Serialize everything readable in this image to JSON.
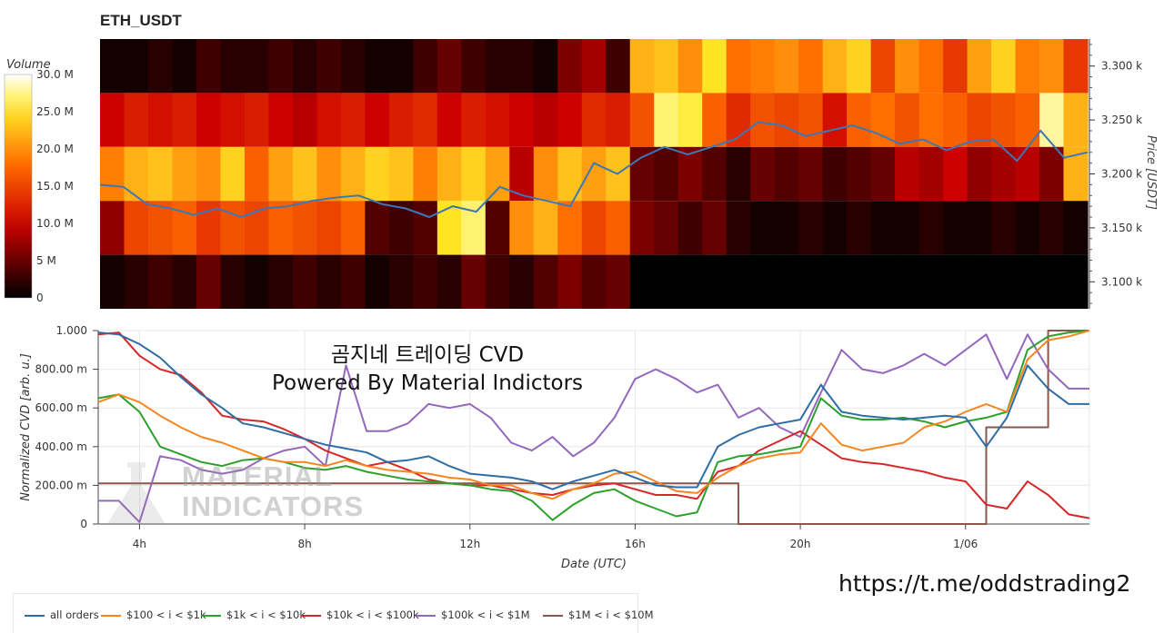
{
  "title": "ETH_USDT",
  "overlay_title": [
    "곰지네 트레이딩 CVD",
    "Powered By Material Indictors"
  ],
  "link": "https://t.me/oddstrading2",
  "watermark": [
    "MATERIAL",
    "INDICATORS"
  ],
  "colors": {
    "all": "#2e6da4",
    "s100": "#f5861f",
    "s1k": "#2ca02c",
    "s10k": "#d62728",
    "s100k": "#9467bd",
    "s1M": "#8c564b",
    "price": "#3b78b5"
  },
  "chart_data": [
    {
      "type": "heatmap",
      "title": "ETH_USDT",
      "colorbar": {
        "label": "Volume",
        "min": 0,
        "max": 30000000,
        "ticks": [
          "30.0 M",
          "25.0 M",
          "20.0 M",
          "15.0 M",
          "10.0 M",
          "5 M",
          "0"
        ]
      },
      "y_axis": {
        "label": "Price [USDT]",
        "range": [
          3075,
          3325
        ],
        "ticks": [
          3100,
          3150,
          3200,
          3250,
          3300
        ],
        "tick_labels": [
          "3.100 k",
          "3.150 k",
          "3.200 k",
          "3.250 k",
          "3.300 k"
        ]
      },
      "price_bands": [
        3075,
        3125,
        3175,
        3225,
        3275,
        3325
      ],
      "volume_profile_M": {
        "band_3300": [
          1,
          1,
          2,
          1,
          3,
          2,
          2,
          3,
          2,
          3,
          2,
          1,
          1,
          3,
          5,
          3,
          2,
          2,
          1,
          6,
          8,
          3,
          22,
          23,
          20,
          25,
          18,
          19,
          20,
          18,
          22,
          24,
          15,
          20,
          18,
          14,
          21,
          24,
          19,
          20,
          14
        ],
        "band_3250": [
          10,
          12,
          11,
          12,
          10,
          11,
          12,
          10,
          9,
          11,
          12,
          10,
          12,
          13,
          10,
          12,
          11,
          10,
          9,
          10,
          13,
          12,
          16,
          27,
          26,
          17,
          13,
          16,
          15,
          16,
          11,
          17,
          18,
          16,
          18,
          17,
          15,
          16,
          17,
          28,
          22
        ],
        "band_3200": [
          19,
          22,
          23,
          21,
          20,
          24,
          17,
          21,
          23,
          20,
          22,
          24,
          23,
          19,
          22,
          24,
          21,
          9,
          20,
          23,
          21,
          23,
          5,
          4,
          6,
          4,
          2,
          5,
          4,
          5,
          3,
          4,
          5,
          9,
          8,
          10,
          7,
          8,
          9,
          6,
          22
        ],
        "band_3150": [
          7,
          15,
          16,
          17,
          14,
          16,
          15,
          17,
          16,
          15,
          17,
          4,
          3,
          4,
          25,
          27,
          4,
          20,
          22,
          18,
          15,
          17,
          6,
          5,
          3,
          5,
          2,
          1,
          1,
          2,
          1,
          2,
          1,
          1,
          2,
          1,
          1,
          2,
          1,
          2,
          1
        ],
        "band_3100": [
          1,
          2,
          3,
          2,
          5,
          2,
          1,
          2,
          3,
          2,
          3,
          1,
          2,
          3,
          2,
          5,
          3,
          2,
          4,
          6,
          4,
          5,
          0,
          0,
          0,
          0,
          0,
          0,
          0,
          0,
          0,
          0,
          0,
          0,
          0,
          0,
          0,
          0,
          0,
          0,
          0
        ]
      },
      "price_line": [
        3190,
        3188,
        3172,
        3168,
        3162,
        3168,
        3160,
        3168,
        3170,
        3175,
        3178,
        3180,
        3172,
        3168,
        3160,
        3170,
        3165,
        3188,
        3180,
        3175,
        3170,
        3210,
        3200,
        3215,
        3225,
        3218,
        3225,
        3232,
        3248,
        3245,
        3235,
        3240,
        3245,
        3238,
        3228,
        3232,
        3222,
        3230,
        3232,
        3212,
        3240,
        3215,
        3220
      ]
    },
    {
      "type": "line",
      "x_axis": {
        "label": "Date (UTC)",
        "ticks": [
          "4h",
          "8h",
          "12h",
          "16h",
          "20h",
          "1/06"
        ]
      },
      "y_axis": {
        "label": "Normalized CVD [arb. u.]",
        "range": [
          0,
          1
        ],
        "ticks": [
          "0",
          "200.00 m",
          "400.00 m",
          "600.00 m",
          "800.00 m",
          "1.000"
        ]
      },
      "x": [
        3.0,
        3.5,
        4,
        4.5,
        5,
        5.5,
        6,
        6.5,
        7,
        7.5,
        8,
        8.5,
        9,
        9.5,
        10,
        10.5,
        11,
        11.5,
        12,
        12.5,
        13,
        13.5,
        14,
        14.5,
        15,
        15.5,
        16,
        16.5,
        17,
        17.5,
        18,
        18.5,
        19,
        19.5,
        20,
        20.5,
        21,
        21.5,
        22,
        22.5,
        23,
        23.5,
        24,
        24.5,
        25,
        25.5,
        26,
        26.5,
        27
      ],
      "series": [
        {
          "name": "all orders",
          "key": "all",
          "values": [
            0.99,
            0.98,
            0.93,
            0.86,
            0.76,
            0.67,
            0.6,
            0.52,
            0.5,
            0.47,
            0.44,
            0.41,
            0.39,
            0.37,
            0.32,
            0.33,
            0.35,
            0.3,
            0.26,
            0.25,
            0.24,
            0.22,
            0.18,
            0.22,
            0.25,
            0.28,
            0.24,
            0.2,
            0.19,
            0.19,
            0.4,
            0.46,
            0.5,
            0.52,
            0.54,
            0.72,
            0.58,
            0.56,
            0.55,
            0.54,
            0.55,
            0.56,
            0.55,
            0.4,
            0.55,
            0.82,
            0.7,
            0.62,
            0.62
          ]
        },
        {
          "name": "$100 < i < $1k",
          "key": "s100",
          "values": [
            0.63,
            0.67,
            0.63,
            0.56,
            0.5,
            0.45,
            0.42,
            0.38,
            0.34,
            0.32,
            0.32,
            0.3,
            0.33,
            0.3,
            0.28,
            0.27,
            0.26,
            0.24,
            0.23,
            0.2,
            0.2,
            0.16,
            0.13,
            0.18,
            0.21,
            0.26,
            0.27,
            0.22,
            0.17,
            0.16,
            0.24,
            0.3,
            0.34,
            0.36,
            0.37,
            0.52,
            0.41,
            0.38,
            0.4,
            0.42,
            0.5,
            0.53,
            0.58,
            0.62,
            0.58,
            0.85,
            0.95,
            0.97,
            1.0
          ]
        },
        {
          "name": "$1k < i < $10k",
          "key": "s1k",
          "values": [
            0.65,
            0.67,
            0.58,
            0.4,
            0.36,
            0.32,
            0.3,
            0.33,
            0.34,
            0.32,
            0.29,
            0.28,
            0.3,
            0.27,
            0.25,
            0.23,
            0.22,
            0.21,
            0.2,
            0.18,
            0.17,
            0.12,
            0.02,
            0.1,
            0.16,
            0.18,
            0.12,
            0.08,
            0.04,
            0.06,
            0.32,
            0.35,
            0.36,
            0.38,
            0.4,
            0.65,
            0.56,
            0.54,
            0.54,
            0.55,
            0.53,
            0.5,
            0.53,
            0.55,
            0.58,
            0.9,
            0.97,
            0.99,
            1.0
          ]
        },
        {
          "name": "$10k < i < $100k",
          "key": "s10k",
          "values": [
            0.98,
            0.99,
            0.87,
            0.8,
            0.77,
            0.68,
            0.56,
            0.54,
            0.53,
            0.49,
            0.44,
            0.38,
            0.34,
            0.3,
            0.32,
            0.28,
            0.23,
            0.21,
            0.2,
            0.2,
            0.18,
            0.16,
            0.15,
            0.18,
            0.2,
            0.21,
            0.18,
            0.15,
            0.15,
            0.13,
            0.27,
            0.3,
            0.38,
            0.43,
            0.48,
            0.41,
            0.34,
            0.32,
            0.31,
            0.29,
            0.27,
            0.24,
            0.22,
            0.1,
            0.08,
            0.22,
            0.15,
            0.05,
            0.03
          ]
        },
        {
          "name": "$100k < i < $1M",
          "key": "s100k",
          "values": [
            0.12,
            0.12,
            0.01,
            0.35,
            0.33,
            0.28,
            0.26,
            0.28,
            0.34,
            0.38,
            0.4,
            0.3,
            0.82,
            0.48,
            0.48,
            0.52,
            0.62,
            0.6,
            0.62,
            0.55,
            0.42,
            0.38,
            0.45,
            0.35,
            0.42,
            0.55,
            0.75,
            0.8,
            0.75,
            0.68,
            0.72,
            0.55,
            0.6,
            0.5,
            0.45,
            0.68,
            0.9,
            0.8,
            0.78,
            0.82,
            0.88,
            0.82,
            0.9,
            0.98,
            0.75,
            0.98,
            0.8,
            0.7,
            0.7
          ]
        },
        {
          "name": "$1M < i < $10M",
          "key": "s1M",
          "values": [
            0.21,
            0.21,
            0.21,
            0.21,
            0.21,
            0.21,
            0.21,
            0.21,
            0.21,
            0.21,
            0.21,
            0.21,
            0.21,
            0.21,
            0.21,
            0.21,
            0.21,
            0.21,
            0.21,
            0.21,
            0.21,
            0.21,
            0.21,
            0.21,
            0.21,
            0.21,
            0.21,
            0.21,
            0.21,
            0.21,
            0.21,
            0.0,
            0.0,
            0.0,
            0.0,
            0.0,
            0.0,
            0.0,
            0.0,
            0.0,
            0.0,
            0.0,
            0.0,
            0.5,
            0.5,
            0.5,
            1.0,
            1.0,
            1.0
          ]
        }
      ]
    }
  ]
}
